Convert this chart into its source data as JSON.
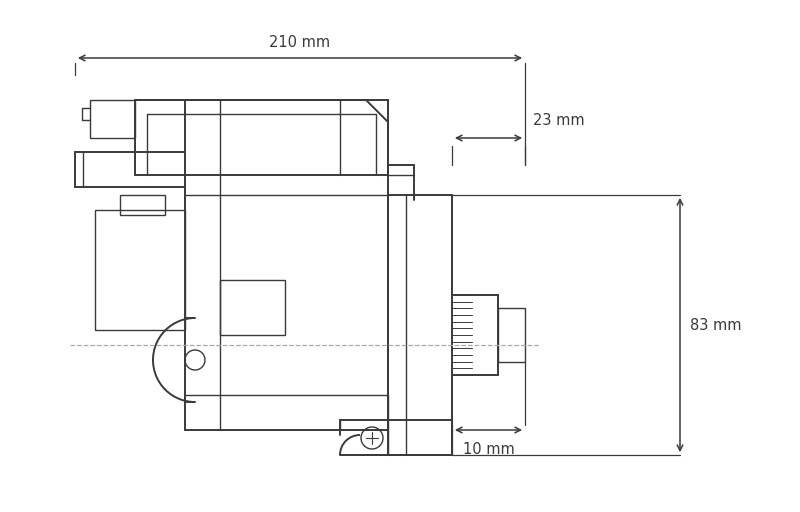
{
  "bg_color": "#ffffff",
  "line_color": "#3a3a3a",
  "dim_color": "#3a3a3a",
  "dash_color": "#aaaaaa",
  "figsize": [
    8.0,
    5.12
  ],
  "dpi": 100,
  "dim_210_label": "210 mm",
  "dim_23_label": "23 mm",
  "dim_83_label": "83 mm",
  "dim_10_label": "10 mm"
}
